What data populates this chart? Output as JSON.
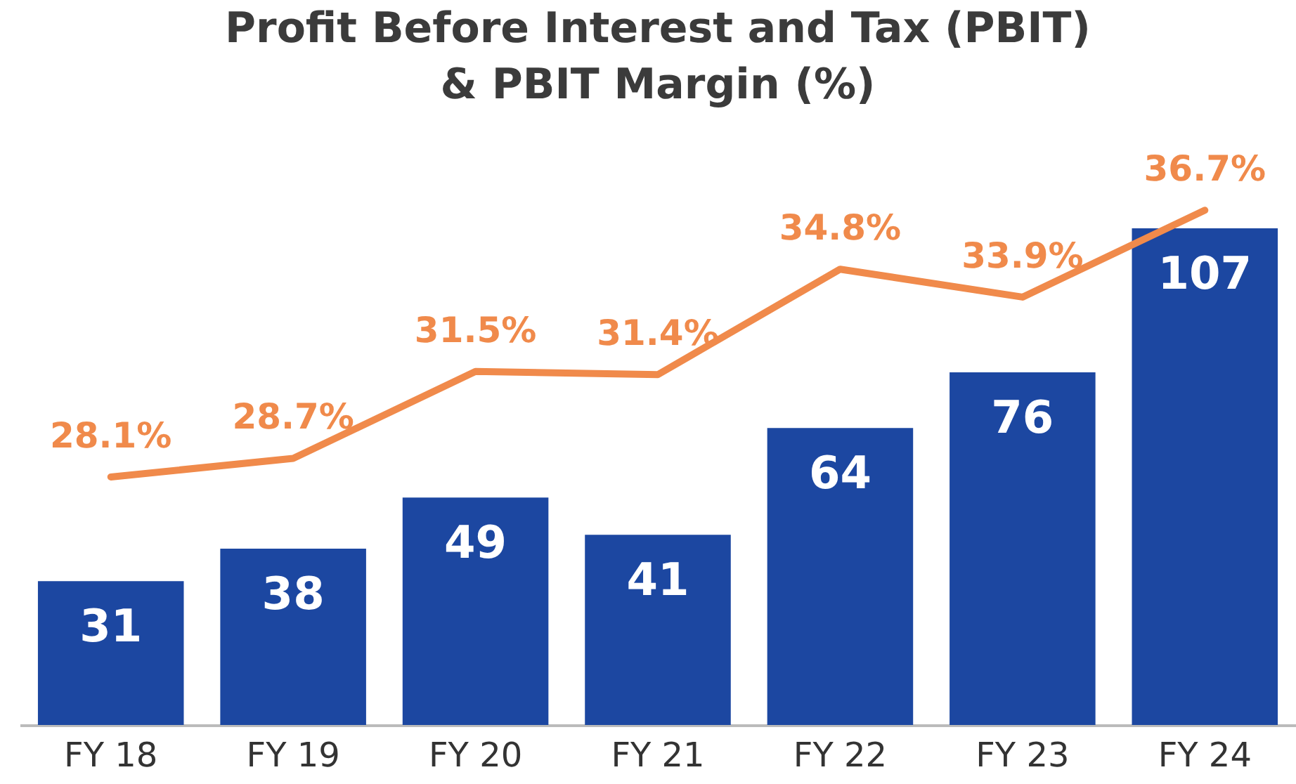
{
  "chart_data": {
    "type": "bar",
    "title": "Profit Before Interest and Tax (PBIT)\n& PBIT Margin (%)",
    "categories": [
      "FY 18",
      "FY 19",
      "FY 20",
      "FY 21",
      "FY 22",
      "FY 23",
      "FY 24"
    ],
    "series": [
      {
        "color": "#1c47a1",
        "values": [
          31,
          38,
          49,
          41,
          64,
          76,
          107
        ],
        "value_labels": [
          "31",
          "38",
          "49",
          "41",
          "64",
          "76",
          "107"
        ]
      },
      {
        "type": "line",
        "axis": "y2",
        "color": "#f08a4b",
        "values": [
          28.1,
          28.7,
          31.5,
          31.4,
          34.8,
          33.9,
          36.7
        ],
        "value_labels": [
          "28.1%",
          "28.7%",
          "31.5%",
          "31.4%",
          "34.8%",
          "33.9%",
          "36.7%"
        ]
      }
    ]
  }
}
